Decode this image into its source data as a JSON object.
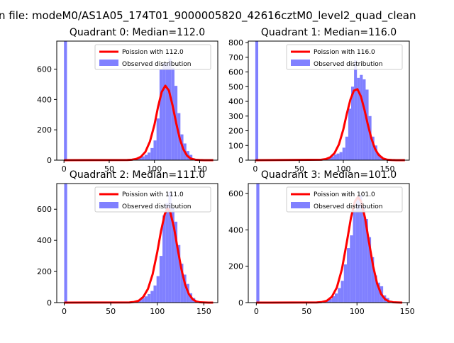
{
  "figure": {
    "suptitle": "n file: modeM0/AS1A05_174T01_9000005820_42616cztM0_level2_quad_clean"
  },
  "colors": {
    "fit_line": "#ff0000",
    "histogram": "#8080ff",
    "axes": "#000000",
    "background": "#ffffff"
  },
  "chart_data": [
    {
      "type": "bar",
      "title": "Quadrant 0: Median=112.0",
      "median": 112.0,
      "xlabel": "",
      "ylabel": "",
      "xlim": [
        -8,
        170
      ],
      "ylim": [
        0,
        785
      ],
      "xticks": [
        0,
        50,
        100,
        150
      ],
      "yticks": [
        0,
        200,
        400,
        600
      ],
      "grid": false,
      "legend_position": "upper right",
      "legend": [
        "Poission with 112.0",
        "Observed distribution"
      ],
      "bin_width": 3.3,
      "histogram": {
        "x": [
          0,
          3.3,
          6.6,
          9.9,
          13.2,
          16.5,
          19.8,
          23.1,
          26.4,
          29.7,
          33,
          36.3,
          39.6,
          42.9,
          46.2,
          49.5,
          52.8,
          56.1,
          59.4,
          62.7,
          66,
          69.3,
          72.6,
          75.9,
          79.2,
          82.5,
          85.8,
          89.1,
          92.4,
          95.7,
          99,
          102.3,
          105.6,
          108.9,
          112.2,
          115.5,
          118.8,
          122.1,
          125.4,
          128.7,
          132,
          135.3,
          138.6,
          141.9,
          145.2,
          148.5,
          151.8,
          155.1,
          158.4,
          161.7
        ],
        "values": [
          785,
          0,
          0,
          0,
          0,
          0,
          0,
          0,
          0,
          0,
          0,
          0,
          0,
          0,
          0,
          0,
          0,
          0,
          0,
          1,
          2,
          3,
          5,
          8,
          15,
          22,
          25,
          35,
          50,
          80,
          130,
          275,
          600,
          640,
          640,
          670,
          610,
          490,
          310,
          170,
          110,
          60,
          35,
          12,
          6,
          3,
          1,
          1,
          0,
          0
        ]
      },
      "fit": {
        "label": "Poission with 112.0",
        "x": [
          0,
          70,
          75,
          80,
          85,
          90,
          95,
          100,
          104,
          108,
          112,
          116,
          120,
          124,
          128,
          132,
          136,
          140,
          145,
          150,
          155,
          160,
          165
        ],
        "y": [
          0,
          1,
          3,
          8,
          22,
          55,
          123,
          233,
          352,
          449,
          491,
          459,
          362,
          245,
          141,
          71,
          30,
          11,
          3,
          1,
          0,
          0,
          0
        ]
      }
    },
    {
      "type": "bar",
      "title": "Quadrant 1: Median=116.0",
      "median": 116.0,
      "xlabel": "",
      "ylabel": "",
      "xlim": [
        -8,
        175
      ],
      "ylim": [
        0,
        810
      ],
      "xticks": [
        0,
        50,
        100,
        150
      ],
      "yticks": [
        0,
        100,
        200,
        300,
        400,
        500,
        600,
        700,
        800
      ],
      "grid": false,
      "legend_position": "upper right",
      "legend": [
        "Poission with 116.0",
        "Observed distribution"
      ],
      "bin_width": 3.3,
      "histogram": {
        "x": [
          0,
          3.3,
          6.6,
          9.9,
          13.2,
          16.5,
          19.8,
          23.1,
          26.4,
          29.7,
          33,
          36.3,
          39.6,
          42.9,
          46.2,
          49.5,
          52.8,
          56.1,
          59.4,
          62.7,
          66,
          69.3,
          72.6,
          75.9,
          79.2,
          82.5,
          85.8,
          89.1,
          92.4,
          95.7,
          99,
          102.3,
          105.6,
          108.9,
          112.2,
          115.5,
          118.8,
          122.1,
          125.4,
          128.7,
          132,
          135.3,
          138.6,
          141.9,
          145.2,
          148.5,
          151.8,
          155.1,
          158.4,
          161.7
        ],
        "values": [
          810,
          0,
          0,
          0,
          0,
          0,
          0,
          0,
          0,
          0,
          0,
          0,
          0,
          0,
          0,
          0,
          0,
          0,
          0,
          0,
          1,
          2,
          4,
          6,
          10,
          16,
          25,
          38,
          45,
          55,
          85,
          160,
          350,
          500,
          680,
          560,
          580,
          550,
          480,
          300,
          160,
          100,
          45,
          25,
          10,
          3,
          1,
          1,
          0,
          0
        ]
      },
      "fit": {
        "label": "Poission with 116.0",
        "x": [
          0,
          75,
          80,
          85,
          90,
          95,
          100,
          104,
          108,
          112,
          116,
          120,
          124,
          128,
          132,
          136,
          140,
          145,
          150,
          155,
          160,
          165,
          170
        ],
        "y": [
          0,
          3,
          7,
          19,
          48,
          107,
          209,
          316,
          411,
          473,
          483,
          434,
          344,
          239,
          146,
          78,
          37,
          12,
          3,
          1,
          0,
          0,
          0
        ]
      }
    },
    {
      "type": "bar",
      "title": "Quadrant 2: Median=111.0",
      "median": 111.0,
      "xlabel": "",
      "ylabel": "",
      "xlim": [
        -8,
        165
      ],
      "ylim": [
        0,
        765
      ],
      "xticks": [
        0,
        50,
        100,
        150
      ],
      "yticks": [
        0,
        200,
        400,
        600
      ],
      "grid": false,
      "legend_position": "upper right",
      "legend": [
        "Poission with 111.0",
        "Observed distribution"
      ],
      "bin_width": 3.2,
      "histogram": {
        "x": [
          0,
          3.2,
          6.4,
          9.6,
          12.8,
          16,
          19.2,
          22.4,
          25.6,
          28.8,
          32,
          35.2,
          38.4,
          41.6,
          44.8,
          48,
          51.2,
          54.4,
          57.6,
          60.8,
          64,
          67.2,
          70.4,
          73.6,
          76.8,
          80,
          83.2,
          86.4,
          89.6,
          92.8,
          96,
          99.2,
          102.4,
          105.6,
          108.8,
          112,
          115.2,
          118.4,
          121.6,
          124.8,
          128,
          131.2,
          134.4,
          137.6,
          140.8,
          144,
          147.2,
          150.4,
          153.6,
          156.8
        ],
        "values": [
          765,
          0,
          0,
          0,
          0,
          0,
          0,
          0,
          0,
          0,
          0,
          0,
          0,
          0,
          0,
          0,
          0,
          0,
          0,
          1,
          2,
          3,
          5,
          8,
          12,
          18,
          30,
          40,
          55,
          75,
          110,
          170,
          300,
          560,
          640,
          710,
          610,
          520,
          370,
          250,
          180,
          120,
          60,
          30,
          10,
          5,
          2,
          1,
          0,
          0
        ]
      },
      "fit": {
        "label": "Poission with 111.0",
        "x": [
          0,
          70,
          75,
          80,
          85,
          90,
          95,
          100,
          104,
          108,
          111,
          114,
          118,
          122,
          126,
          130,
          134,
          138,
          142,
          146,
          150,
          155,
          160
        ],
        "y": [
          0,
          1,
          4,
          12,
          37,
          88,
          182,
          325,
          459,
          568,
          605,
          580,
          481,
          342,
          213,
          114,
          54,
          22,
          7,
          2,
          1,
          0,
          0
        ]
      }
    },
    {
      "type": "bar",
      "title": "Quadrant 3: Median=101.0",
      "median": 101.0,
      "xlabel": "",
      "ylabel": "",
      "xlim": [
        -8,
        152
      ],
      "ylim": [
        0,
        655
      ],
      "xticks": [
        0,
        50,
        100,
        150
      ],
      "yticks": [
        0,
        200,
        400,
        600
      ],
      "grid": false,
      "legend_position": "upper right",
      "legend": [
        "Poission with 101.0",
        "Observed distribution"
      ],
      "bin_width": 3.0,
      "histogram": {
        "x": [
          0,
          3,
          6,
          9,
          12,
          15,
          18,
          21,
          24,
          27,
          30,
          33,
          36,
          39,
          42,
          45,
          48,
          51,
          54,
          57,
          60,
          63,
          66,
          69,
          72,
          75,
          78,
          81,
          84,
          87,
          90,
          93,
          96,
          99,
          102,
          105,
          108,
          111,
          114,
          117,
          120,
          123,
          126,
          129,
          132,
          135,
          138,
          141
        ],
        "values": [
          655,
          0,
          0,
          0,
          0,
          0,
          0,
          0,
          0,
          0,
          0,
          0,
          0,
          0,
          0,
          0,
          0,
          0,
          0,
          1,
          2,
          3,
          5,
          10,
          20,
          35,
          50,
          80,
          120,
          210,
          300,
          370,
          510,
          580,
          590,
          530,
          460,
          360,
          250,
          150,
          110,
          90,
          40,
          25,
          10,
          5,
          2,
          1
        ]
      },
      "fit": {
        "label": "Poission with 101.0",
        "x": [
          0,
          60,
          65,
          70,
          75,
          80,
          85,
          90,
          94,
          98,
          101,
          104,
          108,
          112,
          116,
          120,
          124,
          128,
          132,
          136,
          140,
          145
        ],
        "y": [
          0,
          1,
          3,
          10,
          32,
          83,
          183,
          335,
          466,
          558,
          580,
          558,
          466,
          331,
          202,
          105,
          47,
          18,
          6,
          2,
          1,
          0
        ]
      }
    }
  ]
}
